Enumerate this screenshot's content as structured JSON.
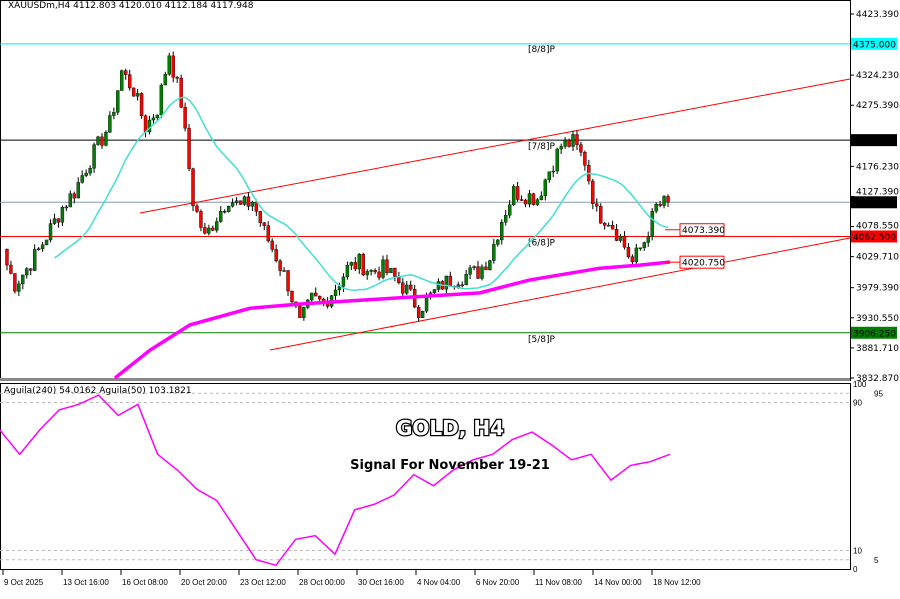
{
  "header": {
    "symbol_info": "XAUUSDm,H4  4112.803 4120.010 4112.184 4117.948"
  },
  "overlay": {
    "title": "GOLD, H4",
    "subtitle": "Signal For November 19-21"
  },
  "chart_data": [
    {
      "type": "candlestick",
      "symbol": "XAUUSDm",
      "timeframe": "H4",
      "ylim": [
        3832.87,
        4423.39
      ],
      "y_ticks": [
        "4423.390",
        "4324.230",
        "4275.390",
        "4176.230",
        "4127.390",
        "4078.550",
        "4029.710",
        "3979.390",
        "3930.550",
        "3881.710",
        "3832.870"
      ],
      "x_ticks": [
        "9 Oct 2025",
        "13 Oct 16:00",
        "16 Oct 08:00",
        "20 Oct 20:00",
        "23 Oct 12:00",
        "28 Oct 00:00",
        "30 Oct 16:00",
        "4 Nov 04:00",
        "6 Nov 20:00",
        "11 Nov 08:00",
        "14 Nov 00:00",
        "18 Nov 12:00"
      ],
      "approx_closes": [
        4032,
        3985,
        4010,
        4040,
        4075,
        4110,
        4135,
        4175,
        4210,
        4245,
        4330,
        4300,
        4240,
        4270,
        4360,
        4280,
        4120,
        4060,
        4095,
        4125,
        4110,
        4120,
        4070,
        4030,
        3985,
        3920,
        3960,
        3955,
        3980,
        4010,
        4020,
        4005,
        4010,
        3995,
        3975,
        3945,
        3965,
        3985,
        3995,
        4000,
        4005,
        4030,
        4090,
        4135,
        4130,
        4125,
        4170,
        4210,
        4215,
        4185,
        4100,
        4090,
        4060,
        4020,
        4055,
        4110,
        4117.948
      ],
      "ma_slow_approx": [
        3832.9,
        3878,
        3919,
        3946,
        3953,
        3963,
        3971,
        3992,
        4011,
        4016,
        4021
      ],
      "levels": [
        {
          "label": "[8/8]P",
          "price": 4375.0,
          "price_label": "4375.000",
          "color": "#00e5ff"
        },
        {
          "label": "[7/8]P",
          "price": 4218.75,
          "price_label": "4218.750",
          "color": "#000000"
        },
        {
          "label": "[6/8]P",
          "price": 4062.5,
          "price_label": "4062.500",
          "color": "#ff0000"
        },
        {
          "label": "[5/8]P",
          "price": 3906.25,
          "price_label": "3906.250",
          "color": "#008000"
        }
      ],
      "current_price": {
        "price": 4117.948,
        "label": "4117.948"
      },
      "ma_labels": [
        {
          "price": 4073.39,
          "label": "4073.390"
        },
        {
          "price": 4020.75,
          "label": "4020.750"
        }
      ],
      "colors": {
        "bull": "#008000",
        "bear": "#ff0000",
        "ma_fast": "#40e0d0",
        "ma_slow": "#ff00ff",
        "channel": "#ff0000"
      }
    },
    {
      "type": "line",
      "legend": "Aguila(240) 54.0162  Aguila(50) 103.1821",
      "ylim": [
        0,
        100
      ],
      "y_ticks": [
        "100",
        "95",
        "90",
        "10",
        "5",
        "0"
      ],
      "values": [
        75,
        62,
        75,
        86,
        89,
        94,
        83,
        89,
        62,
        53.5,
        43,
        37,
        21,
        5,
        2,
        16,
        18,
        8,
        32,
        35,
        40,
        51,
        45,
        53.5,
        59,
        62,
        70,
        74,
        67,
        59,
        62,
        48,
        56,
        58,
        62
      ],
      "color": "#ff00ff"
    }
  ]
}
